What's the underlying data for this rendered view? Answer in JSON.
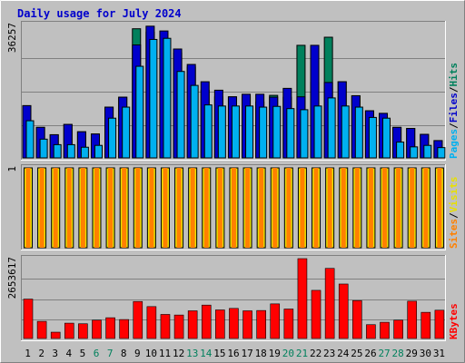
{
  "chart_data": {
    "type": "bar",
    "title": "Daily usage for July 2024",
    "categories": [
      "1",
      "2",
      "3",
      "4",
      "5",
      "6",
      "7",
      "8",
      "9",
      "10",
      "11",
      "12",
      "13",
      "14",
      "15",
      "16",
      "17",
      "18",
      "19",
      "20",
      "21",
      "22",
      "23",
      "24",
      "25",
      "26",
      "27",
      "28",
      "29",
      "30",
      "31"
    ],
    "weekend_days": [
      "6",
      "7",
      "13",
      "14",
      "20",
      "21",
      "27",
      "28"
    ],
    "panels": [
      {
        "name": "pages-files-hits",
        "ymax_label": "36257",
        "ylim": [
          0,
          36257
        ],
        "legend": [
          {
            "text": "Hits",
            "color": "#00805c"
          },
          {
            "text": "/",
            "color": "#000000"
          },
          {
            "text": "Files",
            "color": "#0000cc"
          },
          {
            "text": "/",
            "color": "#000000"
          },
          {
            "text": "Pages",
            "color": "#00b0f0"
          }
        ],
        "series": [
          {
            "name": "Hits",
            "color": "#00805c",
            "values": [
              14200,
              8300,
              6300,
              9100,
              7100,
              6500,
              13800,
              16500,
              35100,
              34200,
              29600,
              28500,
              24700,
              18400,
              16600,
              16600,
              16600,
              15200,
              17000,
              16500,
              30600,
              20500,
              32800,
              20700,
              16900,
              12800,
              12100,
              8300,
              8000,
              6400,
              4700
            ]
          },
          {
            "name": "Files",
            "color": "#0000cc",
            "values": [
              14200,
              8300,
              6300,
              9100,
              7100,
              6500,
              13800,
              16500,
              30700,
              35800,
              34500,
              29600,
              25400,
              20700,
              18400,
              16600,
              17300,
              17300,
              16500,
              18900,
              16600,
              30600,
              20500,
              20700,
              16900,
              12800,
              12100,
              8300,
              8000,
              6400,
              4700
            ]
          },
          {
            "name": "Pages",
            "color": "#00b0f0",
            "values": [
              10100,
              5100,
              3600,
              3600,
              2900,
              3400,
              10800,
              13800,
              24900,
              32200,
              32500,
              23500,
              19700,
              14400,
              14100,
              14100,
              14100,
              13800,
              14000,
              13400,
              13100,
              14100,
              16300,
              14100,
              13800,
              11000,
              10800,
              4300,
              3000,
              3400,
              2800
            ]
          }
        ]
      },
      {
        "name": "sites-visits",
        "ymax_label": "1",
        "ylim": [
          0,
          1
        ],
        "legend": [
          {
            "text": "Visits",
            "color": "#e8e000"
          },
          {
            "text": "/",
            "color": "#000000"
          },
          {
            "text": "Sites",
            "color": "#ff8000"
          }
        ],
        "series": [
          {
            "name": "Visits",
            "color": "#e8e000",
            "values": [
              1,
              1,
              1,
              1,
              1,
              1,
              1,
              1,
              1,
              1,
              1,
              1,
              1,
              1,
              1,
              1,
              1,
              1,
              1,
              1,
              1,
              1,
              1,
              1,
              1,
              1,
              1,
              1,
              1,
              1,
              1
            ]
          },
          {
            "name": "Sites",
            "color": "#ff8000",
            "values": [
              1,
              1,
              1,
              1,
              1,
              1,
              1,
              1,
              1,
              1,
              1,
              1,
              1,
              1,
              1,
              1,
              1,
              1,
              1,
              1,
              1,
              1,
              1,
              1,
              1,
              1,
              1,
              1,
              1,
              1,
              1
            ]
          }
        ]
      },
      {
        "name": "kbytes",
        "ymax_label": "2653617",
        "ylim": [
          0,
          2653617
        ],
        "legend": [
          {
            "text": "KBytes",
            "color": "#ff0000"
          }
        ],
        "series": [
          {
            "name": "KBytes",
            "color": "#ff0000",
            "values": [
              1310000,
              570000,
              210000,
              510000,
              490000,
              610000,
              690000,
              630000,
              1230000,
              1060000,
              800000,
              780000,
              920000,
              1110000,
              950000,
              1000000,
              920000,
              930000,
              1150000,
              980000,
              2653617,
              1600000,
              2330000,
              1810000,
              1260000,
              460000,
              540000,
              610000,
              1240000,
              870000,
              940000
            ]
          }
        ]
      }
    ]
  }
}
